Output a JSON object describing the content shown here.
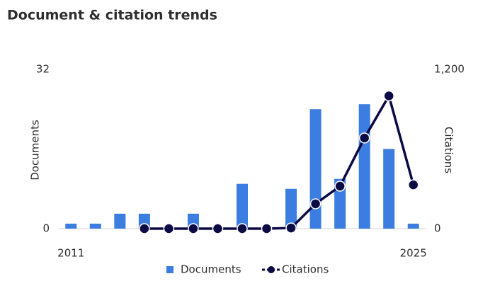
{
  "chart_data": {
    "type": "bar-line",
    "title": "Document & citation trends",
    "categories": [
      "2011",
      null,
      null,
      null,
      null,
      null,
      null,
      null,
      null,
      null,
      null,
      null,
      null,
      null,
      "2025"
    ],
    "series": [
      {
        "name": "Documents",
        "type": "bar",
        "color": "#3b7de0",
        "values": [
          1,
          1,
          3,
          3,
          0,
          3,
          0,
          9,
          0,
          8,
          24,
          10,
          25,
          16,
          1
        ]
      },
      {
        "name": "Citations",
        "type": "line",
        "axis": "y2",
        "color": "#0b0a45",
        "values": [
          null,
          null,
          null,
          0,
          0,
          0,
          0,
          0,
          0,
          5,
          187,
          320,
          683,
          1000,
          330
        ]
      }
    ],
    "ylabel": "Documents",
    "y2label": "Citations",
    "ylim": [
      0,
      32
    ],
    "yticks": [
      0,
      32
    ],
    "y2lim": [
      0,
      1200
    ],
    "y2ticks": [
      0,
      {
        "value": 1200,
        "label": "1,200"
      }
    ],
    "legend": "bottom"
  }
}
